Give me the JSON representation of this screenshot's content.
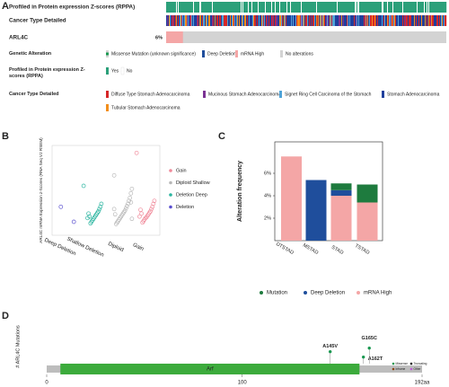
{
  "panels": [
    "A",
    "B",
    "C",
    "D"
  ],
  "oncoprint": {
    "tracks": [
      "Profiled in Protein expression Z-scores (RPPA)",
      "Cancer Type Detailed",
      "ARL4C"
    ],
    "frequency": {
      "value": 6,
      "label": "6%"
    },
    "legend": [
      {
        "title": "Genetic Alteration",
        "items": [
          {
            "name": "Missense Mutation (unknown significance)",
            "color": "#1a9850"
          },
          {
            "name": "Deep Deletion",
            "color": "#1f4e9c"
          },
          {
            "name": "mRNA High",
            "color": "#f4a6a6"
          },
          {
            "name": "No alterations",
            "color": "#d3d3d3"
          }
        ]
      },
      {
        "title": "Profiled in Protein expression Z-scores (RPPA)",
        "items": [
          {
            "name": "Yes",
            "color": "#2ca07a"
          },
          {
            "name": "No",
            "color": "#ffffff"
          }
        ]
      },
      {
        "title": "Cancer Type Detailed",
        "items": [
          {
            "name": "Diffuse Type Stomach Adenocarcinoma",
            "color": "#d62728"
          },
          {
            "name": "Mucinous Stomach Adenocarcinoma",
            "color": "#7b3294"
          },
          {
            "name": "Signet Ring Cell Carcinoma of the Stomach",
            "color": "#4fa3d8"
          },
          {
            "name": "Stomach Adenocarcinoma",
            "color": "#1f3f9c"
          },
          {
            "name": "Tubular Stomach Adenocarcinoma",
            "color": "#f28e1c"
          }
        ]
      }
    ]
  },
  "chart_data": [
    {
      "type": "strip",
      "y_label": "ARL4C mRNA Expression z-Scores (RNA Seq V2 RSEM)",
      "categories": [
        "Deep Deletion",
        "Shallow Deletion",
        "Diploid",
        "Gain"
      ],
      "ylim": [
        -2,
        10
      ],
      "series": [
        {
          "name": "Gain",
          "color": "#f08a9a",
          "values": [
            9.0,
            2.6,
            2.2,
            1.8,
            1.5,
            1.2,
            1.0,
            0.8,
            0.6,
            0.4,
            0.3,
            0.1,
            -0.1,
            -0.3,
            0.9,
            1.4,
            0.5
          ]
        },
        {
          "name": "Diploid Shallow",
          "color": "#b8b8b8",
          "values": [
            6.0,
            4.2,
            3.6,
            3.0,
            2.6,
            2.2,
            1.9,
            1.6,
            1.3,
            1.1,
            0.9,
            0.7,
            0.5,
            0.3,
            0.1,
            -0.1,
            -0.3,
            -0.5,
            0.8,
            1.5,
            0.2,
            2.4
          ]
        },
        {
          "name": "Deletion Deep",
          "color": "#2bb5a0",
          "values": [
            4.6,
            2.2,
            1.8,
            1.5,
            1.2,
            1.0,
            0.8,
            0.6,
            0.4,
            0.2,
            0.0,
            -0.2,
            -0.4,
            0.5,
            0.9,
            0.3
          ]
        },
        {
          "name": "Deletion",
          "color": "#5a4fcf",
          "values": [
            1.8,
            -0.2
          ]
        }
      ]
    },
    {
      "type": "bar",
      "y_label": "Alteration frequency",
      "categories": [
        "DTSTAD",
        "MSTAD",
        "STAD",
        "TSTAD"
      ],
      "ylim": [
        0,
        8
      ],
      "yticks": [
        {
          "value": 2,
          "label": "2%"
        },
        {
          "value": 4,
          "label": "4%"
        },
        {
          "value": 6,
          "label": "6%"
        }
      ],
      "stacked": true,
      "series": [
        {
          "name": "Mutation",
          "color": "#1e7b3e",
          "values": [
            0,
            0,
            0.6,
            1.6
          ]
        },
        {
          "name": "Deep Deletion",
          "color": "#1f4e9c",
          "values": [
            0,
            5.4,
            0.5,
            0
          ]
        },
        {
          "name": "mRNA High",
          "color": "#f4a6a6",
          "values": [
            7.5,
            0,
            4.0,
            3.4
          ]
        }
      ]
    },
    {
      "type": "lollipop",
      "y_label": "# ARL4C Mutations",
      "xlim": [
        0,
        192
      ],
      "xticks": [
        0,
        100,
        {
          "value": 192,
          "label": "192aa"
        }
      ],
      "ylim": [
        0,
        1.5
      ],
      "domains": [
        {
          "name": "Arf",
          "start": 7,
          "end": 160,
          "color": "#3cab3c"
        }
      ],
      "mutations": {
        "labels": [
          "A145V",
          "A162T",
          "G165C"
        ],
        "x": [
          145,
          162,
          165
        ],
        "values": [
          1,
          1,
          1
        ],
        "color": "#1a9850"
      },
      "legend": [
        {
          "name": "Missense",
          "color": "#1a9850"
        },
        {
          "name": "Truncating",
          "color": "#111111"
        },
        {
          "name": "Inframe",
          "color": "#8b4513"
        },
        {
          "name": "Other",
          "color": "#c05ad8"
        }
      ]
    }
  ]
}
